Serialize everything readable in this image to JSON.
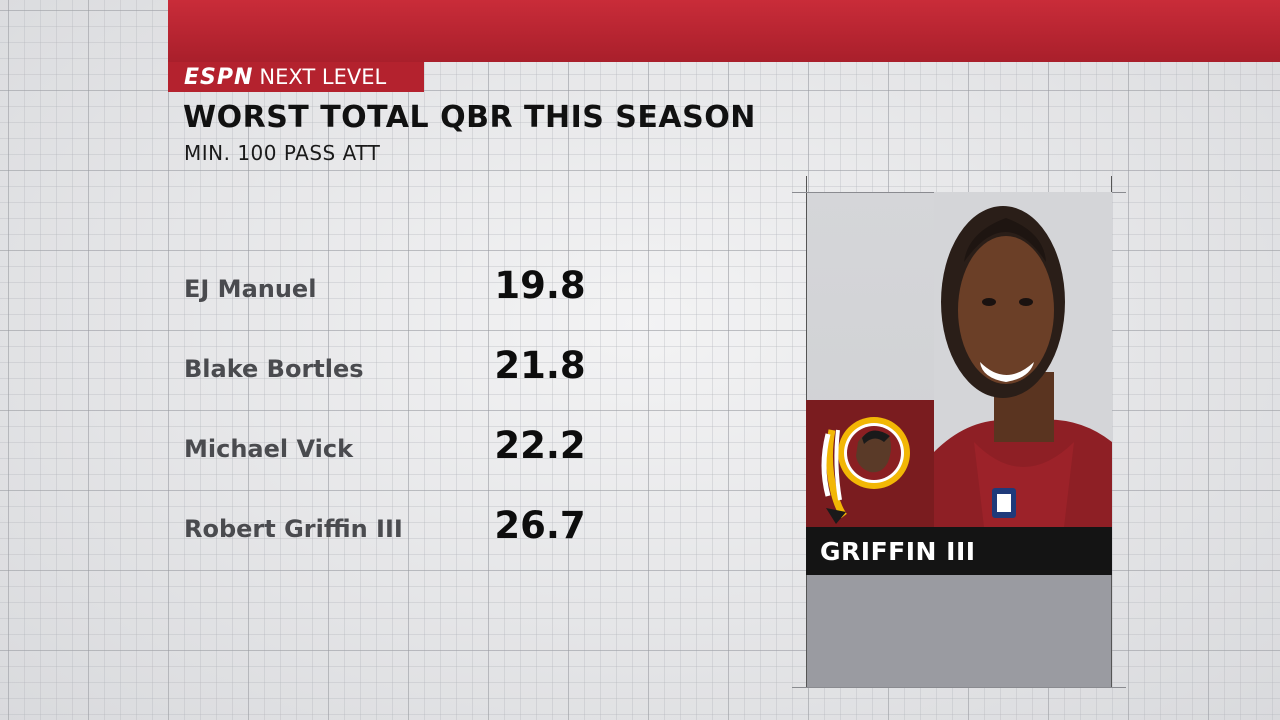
{
  "brand": {
    "logo": "ESPN",
    "segment": "NEXT LEVEL"
  },
  "header": {
    "title": "WORST TOTAL QBR THIS SEASON",
    "subtitle": "MIN. 100 PASS ATT"
  },
  "rows": [
    {
      "name": "EJ Manuel",
      "value": "19.8"
    },
    {
      "name": "Blake Bortles",
      "value": "21.8"
    },
    {
      "name": "Michael Vick",
      "value": "22.2"
    },
    {
      "name": "Robert Griffin III",
      "value": "26.7"
    }
  ],
  "card": {
    "player_name": "GRIFFIN III",
    "team_logo_icon": "team-logo-icon",
    "photo_icon": "player-headshot-icon",
    "colors": {
      "team_primary": "#7a1c1f",
      "team_gold": "#f2b705"
    }
  },
  "colors": {
    "espn_red": "#b4222e",
    "name_text": "#4a4b4f",
    "value_text": "#0d0d0d"
  }
}
